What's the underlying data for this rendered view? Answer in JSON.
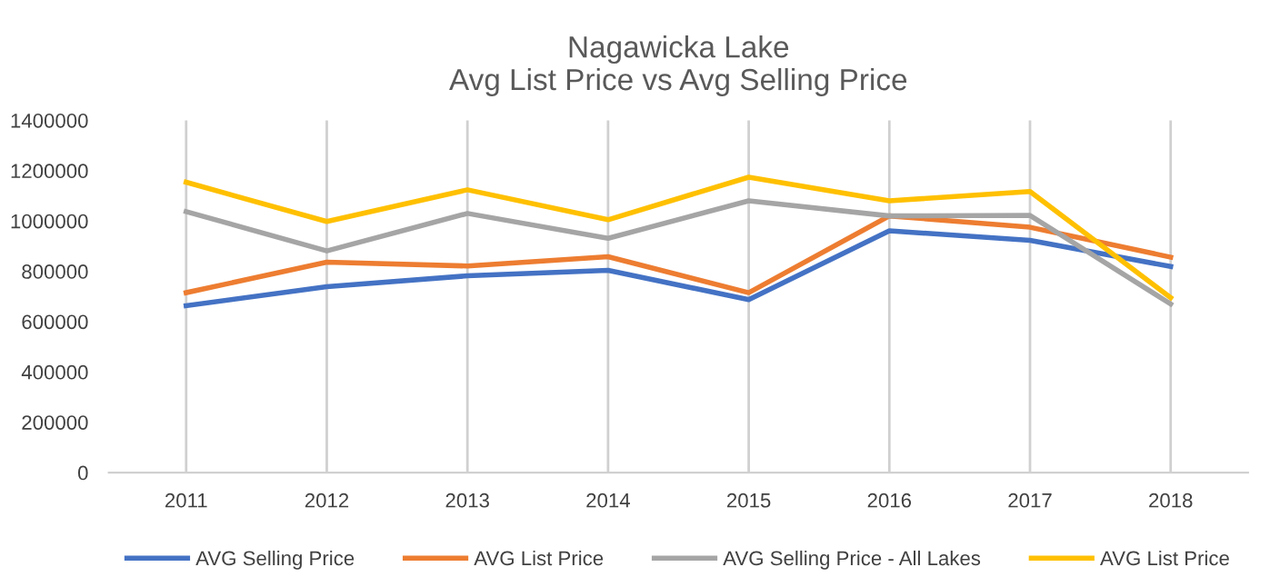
{
  "chart_data": {
    "type": "line",
    "title": "Nagawicka Lake\nAvg List Price vs Avg Selling Price",
    "categories": [
      "2011",
      "2012",
      "2013",
      "2014",
      "2015",
      "2016",
      "2017",
      "2018"
    ],
    "series": [
      {
        "name": "AVG Selling Price",
        "color": "#4472c4",
        "values": [
          663000,
          739000,
          782000,
          804000,
          687000,
          961000,
          923000,
          819000
        ]
      },
      {
        "name": "AVG List Price",
        "color": "#ed7d31",
        "values": [
          715000,
          836000,
          821000,
          858000,
          715000,
          1020000,
          975000,
          856000
        ]
      },
      {
        "name": "AVG Selling Price - All Lakes",
        "color": "#a5a5a5",
        "values": [
          1037000,
          881000,
          1030000,
          931000,
          1080000,
          1020000,
          1022000,
          670000
        ]
      },
      {
        "name": "AVG List Price",
        "color": "#ffc000",
        "values": [
          1154000,
          998000,
          1124000,
          1005000,
          1174000,
          1080000,
          1117000,
          695000
        ]
      }
    ],
    "ylim": [
      0,
      1400000
    ],
    "yticks": [
      0,
      200000,
      400000,
      600000,
      800000,
      1000000,
      1200000,
      1400000
    ],
    "grid": "x",
    "legend": "bottom",
    "marker": "none",
    "line_style": "solid"
  }
}
